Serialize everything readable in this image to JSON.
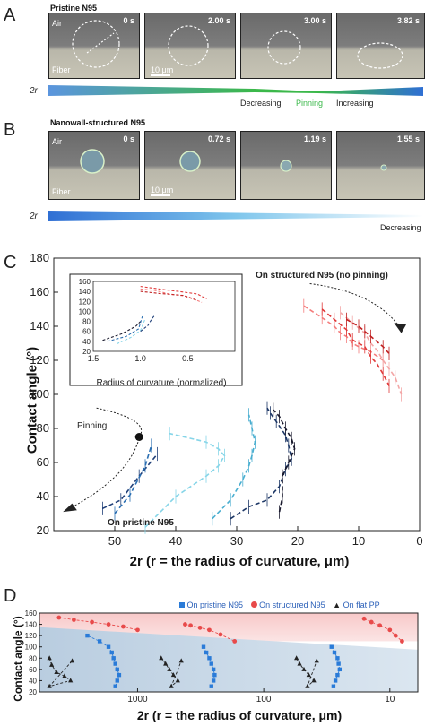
{
  "panels": {
    "A": {
      "letter": "A",
      "title": "Pristine N95",
      "frames": [
        {
          "time": "0 s",
          "air": "Air",
          "fiber": "Fiber",
          "scale": "10 μm"
        },
        {
          "time": "2.00 s"
        },
        {
          "time": "3.00 s"
        },
        {
          "time": "3.82 s"
        }
      ],
      "bar_label": "2r",
      "stage_labels": [
        "Decreasing",
        "Pinning",
        "Increasing"
      ],
      "colors": {
        "stage_decreasing": "#333333",
        "stage_pinning": "#3bb84a",
        "stage_increasing": "#333333"
      }
    },
    "B": {
      "letter": "B",
      "title": "Nanowall-structured N95",
      "frames": [
        {
          "time": "0 s",
          "air": "Air",
          "fiber": "Fiber",
          "scale": "10 μm"
        },
        {
          "time": "0.72 s"
        },
        {
          "time": "1.19 s"
        },
        {
          "time": "1.55 s"
        }
      ],
      "bar_label": "2r",
      "stage_labels": [
        "Decreasing"
      ]
    },
    "C": {
      "letter": "C",
      "annotations": {
        "structured": "On structured N95 (no pinning)",
        "pristine": "On pristine N95",
        "pinning": "Pinning"
      }
    },
    "D": {
      "letter": "D",
      "legend": [
        "On pristine N95",
        "On structured N95",
        "On flat PP"
      ]
    }
  },
  "chart_data": [
    {
      "type": "line",
      "panel": "C main",
      "xlabel": "2r (r = the radius of curvature, μm)",
      "ylabel": "Contact angle (°)",
      "xlim": [
        60,
        0
      ],
      "ylim": [
        20,
        180
      ],
      "xticks": [
        50,
        40,
        30,
        20,
        10,
        0
      ],
      "yticks": [
        20,
        40,
        60,
        80,
        100,
        120,
        140,
        160,
        180
      ],
      "xtick_labels": [
        "50",
        "40",
        "30",
        "20",
        "10",
        "0"
      ],
      "ytick_labels": [
        "20",
        "40",
        "60",
        "80",
        "100",
        "120",
        "140",
        "160",
        "180"
      ],
      "series": [
        {
          "group": "pristine",
          "color": "#1f3f78",
          "x": [
            52,
            49,
            46,
            43
          ],
          "y": [
            33,
            38,
            52,
            65
          ]
        },
        {
          "group": "pristine",
          "color": "#2b6fb2",
          "x": [
            50,
            47.5,
            45,
            44
          ],
          "y": [
            30,
            41,
            58,
            70
          ]
        },
        {
          "group": "pristine",
          "color": "#86d5e8",
          "x": [
            45,
            40,
            35,
            33,
            32,
            33,
            35,
            41
          ],
          "y": [
            22,
            40,
            52,
            58,
            64,
            68,
            72,
            77
          ]
        },
        {
          "group": "pristine",
          "color": "#49aed0",
          "x": [
            34,
            31,
            29,
            28,
            27.5,
            27,
            27.5,
            28
          ],
          "y": [
            27,
            38,
            50,
            58,
            64,
            72,
            80,
            88
          ]
        },
        {
          "group": "pristine",
          "color": "#1d3766",
          "x": [
            31,
            28,
            25,
            23,
            22,
            21,
            21.5,
            22,
            23.5,
            24.5,
            25
          ],
          "y": [
            27,
            34,
            38,
            46,
            56,
            62,
            70,
            76,
            84,
            89,
            92
          ]
        },
        {
          "group": "pristine",
          "color": "#1a1a2e",
          "x": [
            23,
            22.5,
            22.5,
            21.5,
            20.5,
            21,
            22,
            23,
            24
          ],
          "y": [
            31,
            40,
            52,
            60,
            68,
            74,
            80,
            87,
            91
          ]
        },
        {
          "group": "structured",
          "color": "#f47c7c",
          "x": [
            19,
            16,
            14,
            13,
            12,
            11,
            10,
            8,
            6
          ],
          "y": [
            152,
            145,
            140,
            136,
            134,
            130,
            128,
            125,
            120
          ]
        },
        {
          "group": "structured",
          "color": "#e03a3a",
          "x": [
            16,
            14,
            12,
            11,
            9,
            8,
            7,
            6,
            5
          ],
          "y": [
            150,
            144,
            138,
            132,
            128,
            122,
            118,
            112,
            105
          ]
        },
        {
          "group": "structured",
          "color": "#f3a7a7",
          "x": [
            13,
            11,
            9,
            8,
            7,
            6,
            5,
            4,
            3
          ],
          "y": [
            148,
            142,
            136,
            130,
            126,
            120,
            115,
            110,
            100
          ]
        },
        {
          "group": "structured",
          "color": "#c02020",
          "x": [
            12,
            10,
            9,
            8,
            7,
            6,
            5
          ],
          "y": [
            144,
            140,
            137,
            134,
            131,
            128,
            124
          ]
        }
      ],
      "inset": {
        "xlabel": "Radius of curvature (normalized)",
        "xlim": [
          1.5,
          0.0
        ],
        "ylim": [
          20,
          160
        ],
        "xticks": [
          1.5,
          1.0,
          0.5
        ],
        "xtick_labels": [
          "1.5",
          "1.0",
          "0.5"
        ],
        "yticks": [
          20,
          40,
          60,
          80,
          100,
          120,
          140,
          160
        ],
        "ytick_labels": [
          "20",
          "40",
          "60",
          "80",
          "100",
          "120",
          "140",
          "160"
        ],
        "series": [
          {
            "group": "pristine",
            "color": "#1a1a2e",
            "x": [
              1.4,
              1.2,
              1.05,
              1.0
            ],
            "y": [
              42,
              55,
              70,
              80
            ]
          },
          {
            "group": "pristine",
            "color": "#2b6fb2",
            "x": [
              1.35,
              1.15,
              1.02,
              0.98
            ],
            "y": [
              40,
              50,
              65,
              90
            ]
          },
          {
            "group": "pristine",
            "color": "#86d5e8",
            "x": [
              1.25,
              1.1,
              1.0,
              0.95
            ],
            "y": [
              35,
              48,
              62,
              85
            ]
          },
          {
            "group": "pristine",
            "color": "#1f3f78",
            "x": [
              1.0,
              0.92,
              0.88,
              0.85
            ],
            "y": [
              60,
              72,
              85,
              92
            ]
          },
          {
            "group": "structured",
            "color": "#e03a3a",
            "x": [
              1.0,
              0.8,
              0.6,
              0.4,
              0.3
            ],
            "y": [
              150,
              145,
              140,
              135,
              125
            ]
          },
          {
            "group": "structured",
            "color": "#f47c7c",
            "x": [
              1.0,
              0.85,
              0.7,
              0.5,
              0.35
            ],
            "y": [
              145,
              142,
              135,
              130,
              118
            ]
          },
          {
            "group": "structured",
            "color": "#c02020",
            "x": [
              1.0,
              0.8,
              0.55,
              0.4
            ],
            "y": [
              140,
              136,
              132,
              122
            ]
          }
        ]
      }
    },
    {
      "type": "line",
      "panel": "D",
      "xlabel": "2r (r = the radius of curvature, μm)",
      "ylabel": "Contact angle (°)",
      "xscale": "log",
      "xlim": [
        6000,
        6
      ],
      "ylim": [
        20,
        160
      ],
      "xticks": [
        1000,
        100,
        10
      ],
      "xtick_labels": [
        "1000",
        "100",
        "10"
      ],
      "yticks": [
        20,
        40,
        60,
        80,
        100,
        120,
        140,
        160
      ],
      "ytick_labels": [
        "20",
        "40",
        "60",
        "80",
        "100",
        "120",
        "140",
        "160"
      ],
      "series": [
        {
          "name": "On pristine N95",
          "color": "#2a7bd8",
          "marker": "square",
          "x": [
            1500,
            1450,
            1400,
            1450,
            1500,
            1550,
            1600,
            1700,
            2000,
            2500
          ],
          "y": [
            30,
            40,
            50,
            60,
            70,
            80,
            90,
            100,
            110,
            120
          ]
        },
        {
          "name": "On pristine N95",
          "color": "#2a7bd8",
          "marker": "square",
          "x": [
            260,
            250,
            245,
            250,
            260,
            270,
            285,
            300
          ],
          "y": [
            30,
            40,
            50,
            60,
            70,
            80,
            90,
            100
          ]
        },
        {
          "name": "On pristine N95",
          "color": "#2a7bd8",
          "marker": "square",
          "x": [
            28,
            27,
            26,
            25,
            25.5,
            26,
            27.5,
            29
          ],
          "y": [
            30,
            40,
            50,
            60,
            70,
            80,
            90,
            100
          ]
        },
        {
          "name": "On structured N95",
          "color": "#e84a4a",
          "marker": "circle",
          "x": [
            4200,
            3200,
            2300,
            1700,
            1300,
            1000
          ],
          "y": [
            152,
            148,
            144,
            140,
            136,
            130
          ]
        },
        {
          "name": "On structured N95",
          "color": "#e84a4a",
          "marker": "circle",
          "x": [
            420,
            380,
            320,
            270,
            220,
            170
          ],
          "y": [
            140,
            138,
            134,
            130,
            122,
            110
          ]
        },
        {
          "name": "On structured N95",
          "color": "#e84a4a",
          "marker": "circle",
          "x": [
            16,
            14,
            12,
            10,
            9,
            8
          ],
          "y": [
            150,
            144,
            138,
            130,
            120,
            110
          ]
        },
        {
          "name": "On flat PP",
          "color": "#222222",
          "marker": "triangle",
          "x": [
            5000,
            4800,
            4400,
            3800,
            3400,
            5000,
            3300
          ],
          "y": [
            80,
            68,
            55,
            48,
            40,
            30,
            75
          ]
        },
        {
          "name": "On flat PP",
          "color": "#222222",
          "marker": "triangle",
          "x": [
            650,
            600,
            560,
            520,
            480,
            540,
            450
          ],
          "y": [
            80,
            70,
            60,
            50,
            40,
            30,
            75
          ]
        },
        {
          "name": "On flat PP",
          "color": "#222222",
          "marker": "triangle",
          "x": [
            55,
            52,
            48,
            44,
            40,
            45,
            38
          ],
          "y": [
            80,
            70,
            60,
            50,
            40,
            30,
            75
          ]
        }
      ]
    }
  ]
}
